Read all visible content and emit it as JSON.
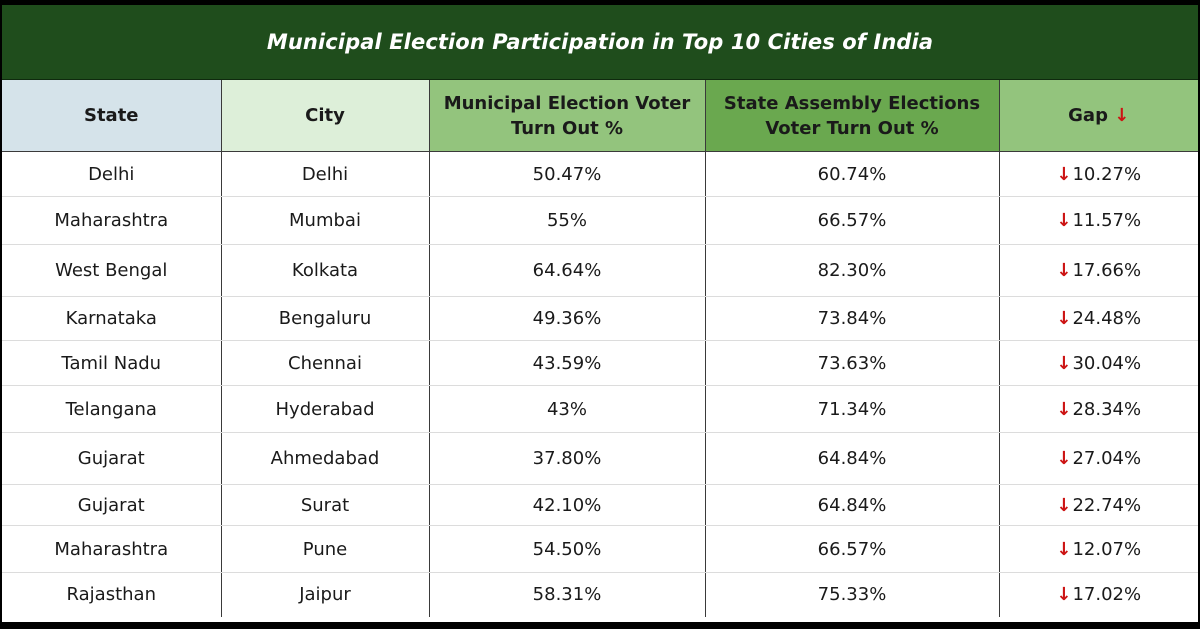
{
  "title": "Municipal Election Participation in Top 10 Cities of India",
  "colors": {
    "title_bar": "#1f4d1c",
    "header_state": "#d5e3ea",
    "header_city": "#ddefd9",
    "header_municipal": "#93c47d",
    "header_assembly": "#6aa84f",
    "header_gap": "#93c47d",
    "down_arrow": "#cc1414"
  },
  "headers": {
    "state": "State",
    "city": "City",
    "municipal_line1": "Municipal Election Voter",
    "municipal_line2": "Turn Out %",
    "assembly_line1": "State Assembly Elections",
    "assembly_line2": "Voter Turn Out %",
    "gap": "Gap",
    "gap_icon": "↓"
  },
  "rows": [
    {
      "state": "Delhi",
      "city": "Delhi",
      "municipal": "50.47%",
      "assembly": "60.74%",
      "gap_arrow": "↓",
      "gap": "10.27%"
    },
    {
      "state": "Maharashtra",
      "city": "Mumbai",
      "municipal": "55%",
      "assembly": "66.57%",
      "gap_arrow": "↓",
      "gap": "11.57%"
    },
    {
      "state": "West Bengal",
      "city": "Kolkata",
      "municipal": "64.64%",
      "assembly": "82.30%",
      "gap_arrow": "↓",
      "gap": "17.66%"
    },
    {
      "state": "Karnataka",
      "city": "Bengaluru",
      "municipal": "49.36%",
      "assembly": "73.84%",
      "gap_arrow": "↓",
      "gap": "24.48%"
    },
    {
      "state": "Tamil Nadu",
      "city": "Chennai",
      "municipal": "43.59%",
      "assembly": "73.63%",
      "gap_arrow": "↓",
      "gap": "30.04%"
    },
    {
      "state": "Telangana",
      "city": "Hyderabad",
      "municipal": "43%",
      "assembly": "71.34%",
      "gap_arrow": "↓",
      "gap": "28.34%"
    },
    {
      "state": "Gujarat",
      "city": "Ahmedabad",
      "municipal": "37.80%",
      "assembly": "64.84%",
      "gap_arrow": "↓",
      "gap": "27.04%"
    },
    {
      "state": "Gujarat",
      "city": "Surat",
      "municipal": "42.10%",
      "assembly": "64.84%",
      "gap_arrow": "↓",
      "gap": "22.74%"
    },
    {
      "state": "Maharashtra",
      "city": "Pune",
      "municipal": "54.50%",
      "assembly": "66.57%",
      "gap_arrow": "↓",
      "gap": "12.07%"
    },
    {
      "state": "Rajasthan",
      "city": "Jaipur",
      "municipal": "58.31%",
      "assembly": "75.33%",
      "gap_arrow": "↓",
      "gap": "17.02%"
    }
  ],
  "chart_data": {
    "type": "table",
    "title": "Municipal Election Participation in Top 10 Cities of India",
    "columns": [
      "State",
      "City",
      "Municipal Election Voter Turn Out %",
      "State Assembly Elections Voter Turn Out %",
      "Gap"
    ],
    "rows": [
      [
        "Delhi",
        "Delhi",
        "50.47%",
        "60.74%",
        "10.27%"
      ],
      [
        "Maharashtra",
        "Mumbai",
        "55%",
        "66.57%",
        "11.57%"
      ],
      [
        "West Bengal",
        "Kolkata",
        "64.64%",
        "82.30%",
        "17.66%"
      ],
      [
        "Karnataka",
        "Bengaluru",
        "49.36%",
        "73.84%",
        "24.48%"
      ],
      [
        "Tamil Nadu",
        "Chennai",
        "43.59%",
        "73.63%",
        "30.04%"
      ],
      [
        "Telangana",
        "Hyderabad",
        "43%",
        "71.34%",
        "28.34%"
      ],
      [
        "Gujarat",
        "Ahmedabad",
        "37.80%",
        "64.84%",
        "27.04%"
      ],
      [
        "Gujarat",
        "Surat",
        "42.10%",
        "64.84%",
        "22.74%"
      ],
      [
        "Maharashtra",
        "Pune",
        "54.50%",
        "66.57%",
        "12.07%"
      ],
      [
        "Rajasthan",
        "Jaipur",
        "58.31%",
        "75.33%",
        "17.02%"
      ]
    ]
  }
}
